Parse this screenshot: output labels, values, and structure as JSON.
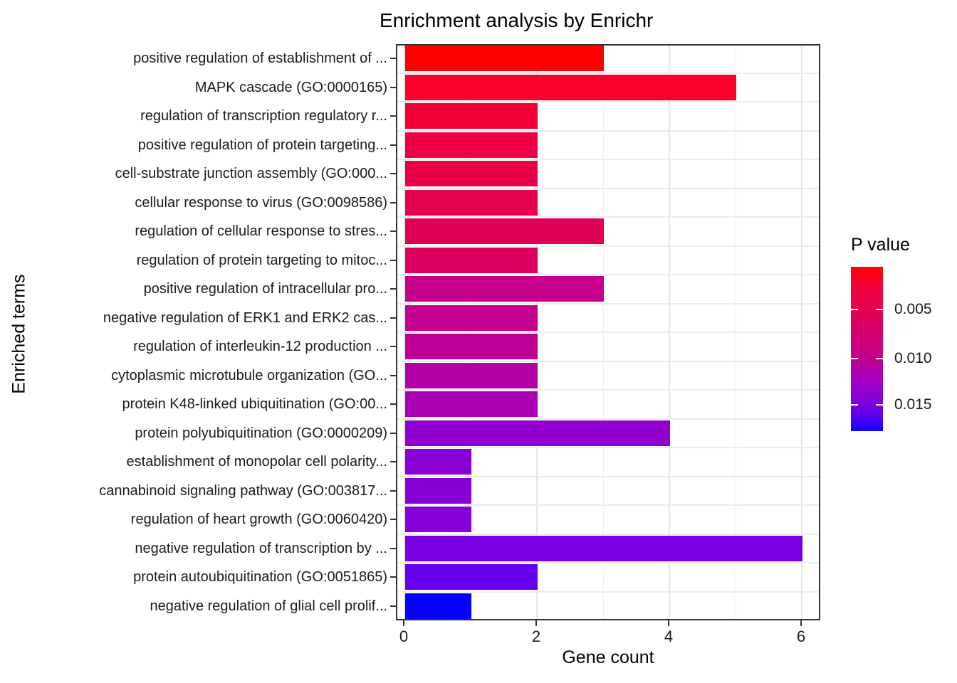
{
  "title": "Enrichment analysis by Enrichr",
  "chart_data": {
    "type": "bar",
    "orientation": "horizontal",
    "title": "Enrichment analysis by Enrichr",
    "xlabel": "Gene count",
    "ylabel": "Enriched terms",
    "xlim": [
      0,
      6.3
    ],
    "x_ticks": [
      0,
      2,
      4,
      6
    ],
    "grid": "on",
    "grid_major_x": [
      0,
      2,
      4,
      6
    ],
    "grid_minor_x": [
      1,
      3,
      5
    ],
    "categories": [
      "positive regulation of establishment of ...",
      "MAPK cascade (GO:0000165)",
      "regulation of transcription regulatory r...",
      "positive regulation of protein targeting...",
      "cell-substrate junction assembly (GO:000...",
      "cellular response to virus (GO:0098586)",
      "regulation of cellular response to stres...",
      "regulation of protein targeting to mitoc...",
      "positive regulation of intracellular pro...",
      "negative regulation of ERK1 and ERK2 cas...",
      "regulation of interleukin-12 production ...",
      "cytoplasmic microtubule organization (GO...",
      "protein K48-linked ubiquitination (GO:00...",
      "protein polyubiquitination (GO:0000209)",
      "establishment of monopolar cell polarity...",
      "cannabinoid signaling pathway (GO:003817...",
      "regulation of heart growth (GO:0060420)",
      "negative regulation of transcription by ...",
      "protein autoubiquitination (GO:0051865)",
      "negative regulation of glial cell prolif..."
    ],
    "values": [
      3,
      5,
      2,
      2,
      2,
      2,
      3,
      2,
      3,
      2,
      2,
      2,
      2,
      4,
      1,
      1,
      1,
      6,
      2,
      1
    ],
    "bar_colors": [
      "#FF0000",
      "#FA002B",
      "#F40039",
      "#EF0042",
      "#EA0048",
      "#E50050",
      "#E00056",
      "#DC005E",
      "#C5008C",
      "#C30090",
      "#BE0098",
      "#B300A6",
      "#A900B4",
      "#9100D0",
      "#8A00D6",
      "#8800D8",
      "#8500DB",
      "#7800E2",
      "#6600EE",
      "#0300FF"
    ],
    "color_encoding": "P value",
    "legend": {
      "title": "P value",
      "position": "right",
      "tick_labels": [
        "0.005",
        "0.010",
        "0.015"
      ],
      "tick_positions_pct": [
        26.1,
        55.7,
        83.9
      ],
      "gradient_stops": [
        {
          "pct": 0,
          "color": "#FF0000"
        },
        {
          "pct": 13,
          "color": "#F10040"
        },
        {
          "pct": 26,
          "color": "#E4004E"
        },
        {
          "pct": 40,
          "color": "#D4006E"
        },
        {
          "pct": 56,
          "color": "#C0008F"
        },
        {
          "pct": 70,
          "color": "#A100C4"
        },
        {
          "pct": 84,
          "color": "#7A00E0"
        },
        {
          "pct": 93,
          "color": "#4A00F4"
        },
        {
          "pct": 100,
          "color": "#0F00FF"
        }
      ]
    }
  }
}
